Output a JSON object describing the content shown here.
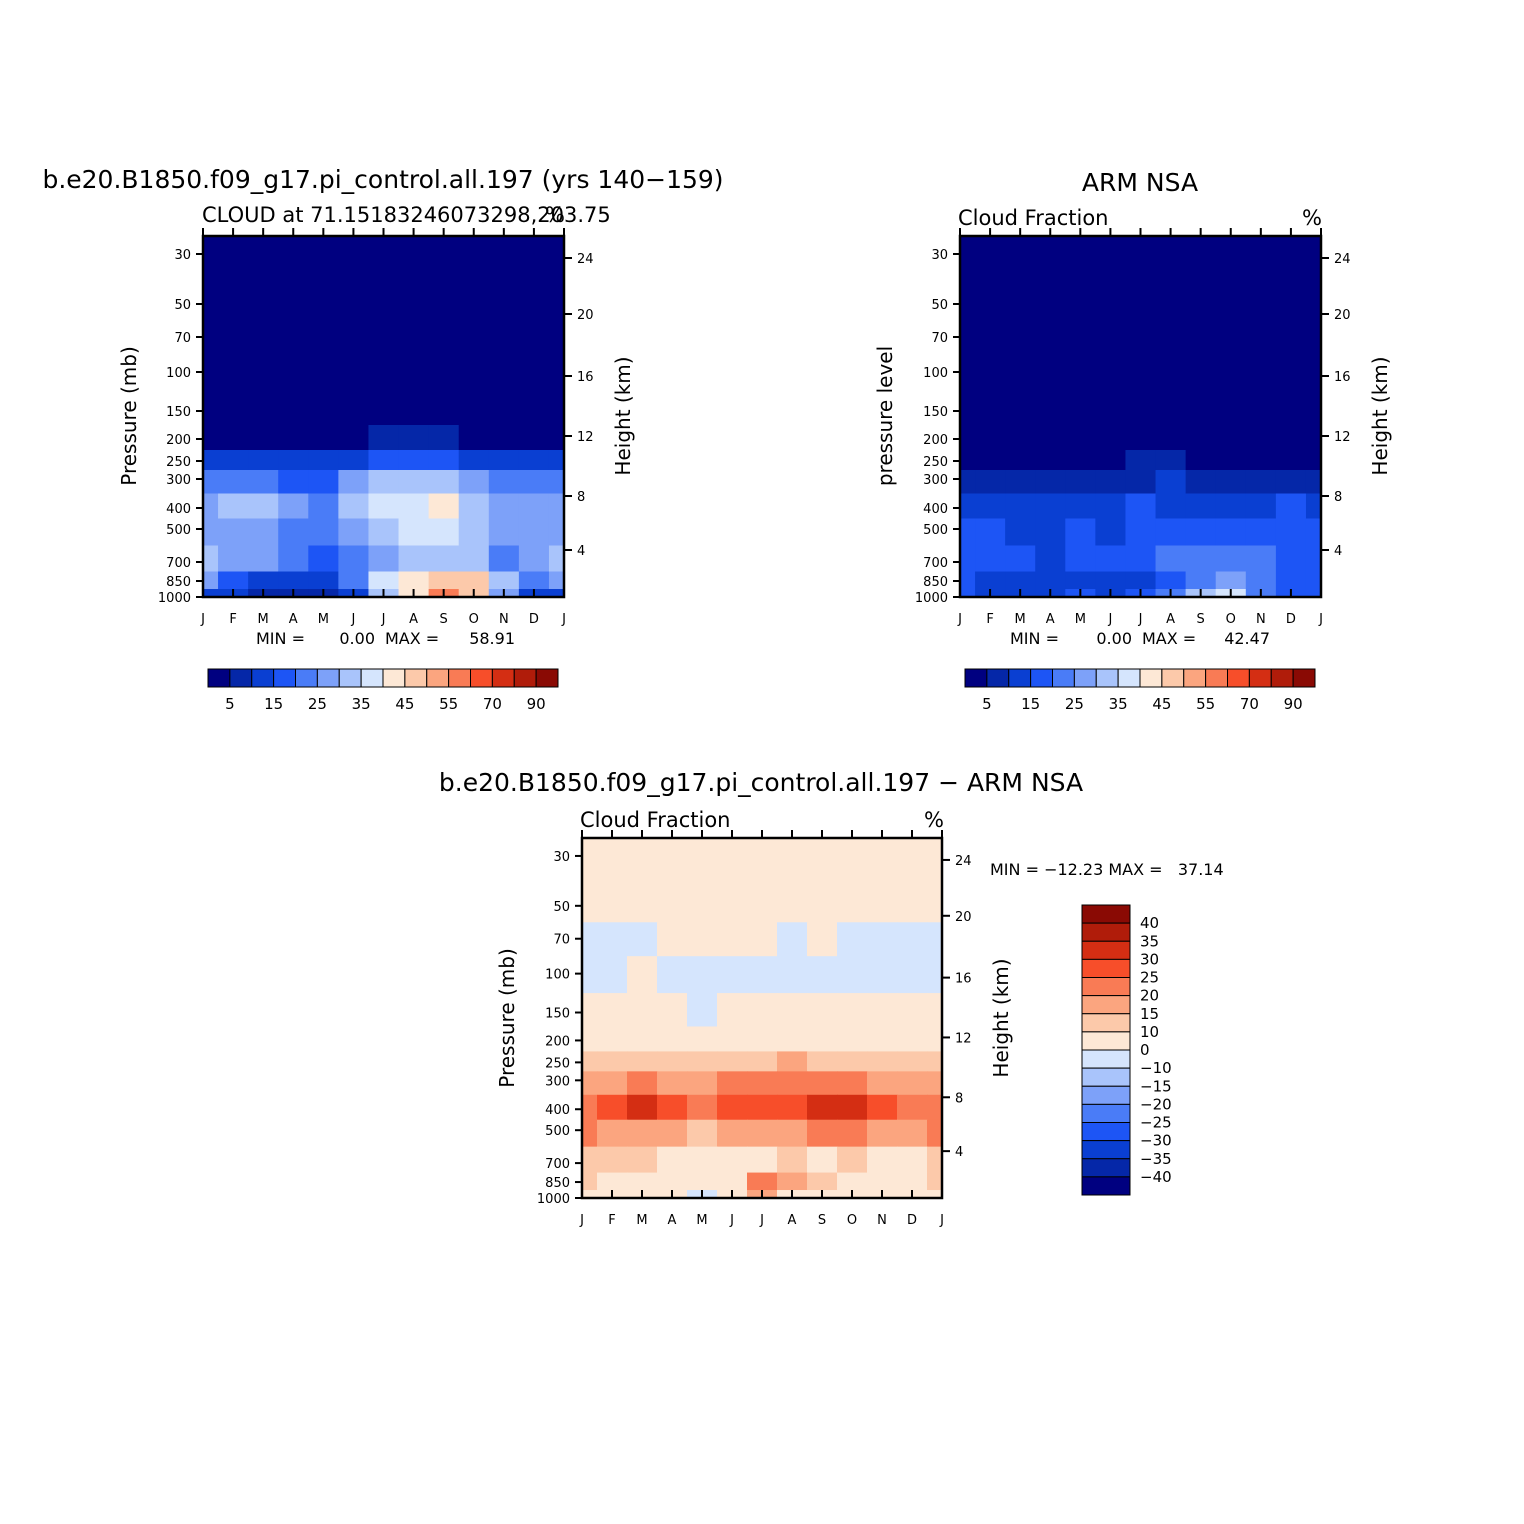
{
  "colors": {
    "seq": [
      "#000080",
      "#0527a8",
      "#0a3fd2",
      "#1d55f5",
      "#4a7cf7",
      "#7da1f9",
      "#a9c4fb",
      "#d5e5fd",
      "#fde8d6",
      "#fcc9aa",
      "#fba57f",
      "#f97b55",
      "#f74e2a",
      "#d42e13",
      "#b01c0a",
      "#8a0a04"
    ],
    "diff": [
      "#000080",
      "#0527a8",
      "#0a3fd2",
      "#1d55f5",
      "#4a7cf7",
      "#7da1f9",
      "#a9c4fb",
      "#d5e5fd",
      "#fde8d6",
      "#fcc9aa",
      "#fba57f",
      "#f97b55",
      "#f74e2a",
      "#d42e13",
      "#b01c0a",
      "#8a0a04"
    ]
  },
  "panel_model": {
    "title": "b.e20.B1850.f09_g17.pi_control.all.197 (yrs 140−159)",
    "left_string": "CLOUD at 71.15183246073298,203.75",
    "right_string": "%",
    "ylabel": "Pressure (mb)",
    "y2label": "Height (km)",
    "min_label": "MIN =",
    "min_value": "0.00",
    "max_label": "MAX =",
    "max_value": "58.91"
  },
  "panel_obs": {
    "title": "ARM NSA",
    "left_string": "Cloud Fraction",
    "right_string": "%",
    "ylabel": "pressure level",
    "y2label": "Height (km)",
    "min_label": "MIN =",
    "min_value": "0.00",
    "max_label": "MAX =",
    "max_value": "42.47"
  },
  "panel_diff": {
    "title": "b.e20.B1850.f09_g17.pi_control.all.197 − ARM NSA",
    "left_string": "Cloud Fraction",
    "right_string": "%",
    "ylabel": "Pressure (mb)",
    "y2label": "Height (km)",
    "minmax_text": "MIN = −12.23 MAX =   37.14"
  },
  "axes": {
    "month_ticks": [
      "J",
      "F",
      "M",
      "A",
      "M",
      "J",
      "J",
      "A",
      "S",
      "O",
      "N",
      "D",
      "J"
    ],
    "pressure_ticks": [
      "30",
      "50",
      "70",
      "100",
      "150",
      "200",
      "250",
      "300",
      "400",
      "500",
      "700",
      "850",
      "1000"
    ],
    "height_ticks": [
      "24",
      "20",
      "16",
      "12",
      "8",
      "4"
    ]
  },
  "colorbar_seq_labels": [
    "5",
    "15",
    "25",
    "35",
    "45",
    "55",
    "70",
    "90"
  ],
  "colorbar_diff_labels": [
    "40",
    "35",
    "30",
    "25",
    "20",
    "15",
    "10",
    "0",
    "−10",
    "−15",
    "−20",
    "−25",
    "−30",
    "−35",
    "−40"
  ],
  "chart_data": [
    {
      "type": "heatmap",
      "title": "b.e20.B1850.f09_g17.pi_control.all.197 (yrs 140−159)",
      "subtitle": "CLOUD at 71.15183246073298,203.75",
      "units": "%",
      "xlabel": "",
      "ylabel": "Pressure (mb)",
      "y2label": "Height (km)",
      "x": [
        "J",
        "F",
        "M",
        "A",
        "M",
        "J",
        "J",
        "A",
        "S",
        "O",
        "N",
        "D",
        "J"
      ],
      "y": [
        30,
        50,
        70,
        100,
        150,
        200,
        250,
        300,
        400,
        500,
        700,
        850,
        1000
      ],
      "levels": [
        5,
        10,
        15,
        20,
        25,
        30,
        35,
        40,
        45,
        50,
        55,
        60,
        70,
        80,
        90
      ],
      "z": [
        [
          1,
          1,
          1,
          1,
          1,
          1,
          1,
          1,
          1,
          1,
          1,
          1,
          1
        ],
        [
          1,
          1,
          1,
          1,
          1,
          1,
          1,
          1,
          1,
          1,
          1,
          1,
          1
        ],
        [
          1,
          1,
          1,
          1,
          1,
          1,
          1,
          1,
          1,
          1,
          1,
          1,
          1
        ],
        [
          1,
          1,
          1,
          1,
          1,
          1,
          1,
          1,
          1,
          1,
          1,
          1,
          1
        ],
        [
          1,
          1,
          1,
          1,
          1,
          1,
          1,
          1,
          1,
          1,
          1,
          1,
          1
        ],
        [
          4,
          3,
          3,
          2,
          2,
          4,
          5,
          6,
          5,
          4,
          3,
          3,
          4
        ],
        [
          14,
          13,
          12,
          10,
          10,
          13,
          16,
          19,
          16,
          14,
          12,
          12,
          14
        ],
        [
          24,
          24,
          22,
          19,
          19,
          25,
          30,
          34,
          32,
          28,
          24,
          23,
          24
        ],
        [
          28,
          30,
          32,
          26,
          24,
          30,
          35,
          37,
          40,
          34,
          28,
          26,
          28
        ],
        [
          29,
          28,
          27,
          23,
          22,
          27,
          32,
          35,
          35,
          34,
          26,
          27,
          29
        ],
        [
          30,
          27,
          26,
          22,
          18,
          20,
          25,
          30,
          32,
          33,
          23,
          27,
          30
        ],
        [
          26,
          18,
          14,
          13,
          11,
          22,
          35,
          42,
          48,
          45,
          30,
          24,
          26
        ],
        [
          12,
          10,
          9,
          9,
          8,
          14,
          30,
          40,
          55,
          48,
          25,
          12,
          12
        ]
      ],
      "min": 0.0,
      "max": 58.91
    },
    {
      "type": "heatmap",
      "title": "ARM NSA",
      "subtitle": "Cloud Fraction",
      "units": "%",
      "ylabel": "pressure level",
      "y2label": "Height (km)",
      "x": [
        "J",
        "F",
        "M",
        "A",
        "M",
        "J",
        "J",
        "A",
        "S",
        "O",
        "N",
        "D",
        "J"
      ],
      "y": [
        30,
        50,
        70,
        100,
        150,
        200,
        250,
        300,
        400,
        500,
        700,
        850,
        1000
      ],
      "levels": [
        5,
        10,
        15,
        20,
        25,
        30,
        35,
        40,
        45,
        50,
        55,
        60,
        70,
        80,
        90
      ],
      "z": [
        [
          1,
          1,
          1,
          1,
          1,
          1,
          1,
          1,
          1,
          1,
          1,
          1,
          1
        ],
        [
          1,
          1,
          1,
          1,
          1,
          1,
          1,
          1,
          1,
          1,
          1,
          1,
          1
        ],
        [
          1,
          1,
          1,
          1,
          1,
          1,
          1,
          1,
          1,
          1,
          1,
          1,
          1
        ],
        [
          1,
          1,
          1,
          1,
          1,
          1,
          1,
          1,
          1,
          1,
          1,
          1,
          1
        ],
        [
          1,
          1,
          1,
          1,
          1,
          1,
          1,
          1,
          1,
          1,
          1,
          1,
          1
        ],
        [
          1,
          1,
          1,
          1,
          1,
          1,
          1,
          1,
          1,
          1,
          1,
          1,
          1
        ],
        [
          3,
          3,
          2,
          2,
          3,
          4,
          5,
          6,
          4,
          3,
          3,
          3,
          3
        ],
        [
          8,
          7,
          6,
          6,
          7,
          8,
          9,
          10,
          9,
          8,
          8,
          7,
          8
        ],
        [
          14,
          12,
          10,
          10,
          12,
          13,
          15,
          14,
          12,
          12,
          14,
          15,
          14
        ],
        [
          16,
          15,
          14,
          12,
          15,
          14,
          16,
          18,
          16,
          17,
          16,
          17,
          16
        ],
        [
          17,
          16,
          16,
          14,
          17,
          15,
          18,
          22,
          24,
          22,
          20,
          18,
          17
        ],
        [
          15,
          13,
          12,
          12,
          13,
          10,
          13,
          16,
          22,
          26,
          20,
          15,
          15
        ],
        [
          17,
          14,
          12,
          13,
          15,
          12,
          15,
          20,
          30,
          38,
          24,
          16,
          17
        ]
      ],
      "min": 0.0,
      "max": 42.47
    },
    {
      "type": "heatmap",
      "title": "b.e20.B1850.f09_g17.pi_control.all.197 − ARM NSA",
      "subtitle": "Cloud Fraction",
      "units": "%",
      "ylabel": "Pressure (mb)",
      "y2label": "Height (km)",
      "x": [
        "J",
        "F",
        "M",
        "A",
        "M",
        "J",
        "J",
        "A",
        "S",
        "O",
        "N",
        "D",
        "J"
      ],
      "y": [
        30,
        50,
        70,
        100,
        150,
        200,
        250,
        300,
        400,
        500,
        700,
        850,
        1000
      ],
      "levels": [
        -40,
        -35,
        -30,
        -25,
        -20,
        -15,
        -10,
        0,
        10,
        15,
        20,
        25,
        30,
        35,
        40
      ],
      "z": [
        [
          2,
          2,
          2,
          2,
          2,
          2,
          2,
          2,
          2,
          2,
          2,
          2,
          2
        ],
        [
          1,
          2,
          2,
          2,
          2,
          2,
          2,
          2,
          2,
          2,
          2,
          1,
          1
        ],
        [
          -1,
          -1,
          -1,
          1,
          1,
          1,
          1,
          -1,
          1,
          -1,
          -1,
          -1,
          -1
        ],
        [
          -1,
          -1,
          1,
          -1,
          -1,
          -1,
          -1,
          -1,
          -1,
          -1,
          -1,
          -1,
          -1
        ],
        [
          2,
          2,
          2,
          2,
          -1,
          2,
          2,
          2,
          2,
          2,
          2,
          2,
          2
        ],
        [
          5,
          5,
          5,
          5,
          5,
          5,
          5,
          5,
          5,
          5,
          5,
          5,
          5
        ],
        [
          13,
          13,
          13,
          12,
          12,
          13,
          14,
          15,
          14,
          13,
          12,
          12,
          13
        ],
        [
          18,
          19,
          20,
          18,
          18,
          20,
          23,
          24,
          23,
          21,
          18,
          18,
          18
        ],
        [
          24,
          26,
          30,
          25,
          24,
          26,
          28,
          28,
          30,
          33,
          26,
          22,
          24
        ],
        [
          20,
          19,
          18,
          16,
          14,
          17,
          18,
          18,
          20,
          24,
          16,
          17,
          20
        ],
        [
          14,
          11,
          10,
          8,
          5,
          7,
          8,
          10,
          8,
          11,
          7,
          9,
          14
        ],
        [
          11,
          9,
          5,
          3,
          1,
          9,
          20,
          15,
          12,
          9,
          5,
          3,
          11
        ],
        [
          8,
          5,
          3,
          2,
          -1,
          5,
          15,
          8,
          4,
          2,
          2,
          2,
          8
        ]
      ],
      "min": -12.23,
      "max": 37.14
    }
  ]
}
